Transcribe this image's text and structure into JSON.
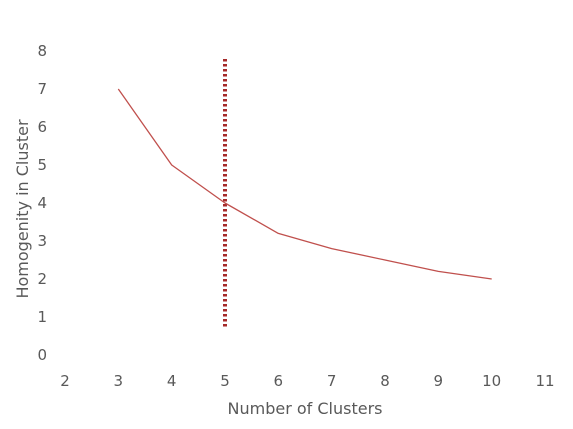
{
  "chart_data": {
    "type": "line",
    "xlabel": "Number of Clusters",
    "ylabel": "Homogenity in Cluster",
    "xlim": [
      2,
      11
    ],
    "ylim": [
      0,
      8
    ],
    "x_ticks": [
      "2",
      "3",
      "4",
      "5",
      "6",
      "7",
      "8",
      "9",
      "10",
      "11"
    ],
    "y_ticks": [
      "0",
      "1",
      "2",
      "3",
      "4",
      "5",
      "6",
      "7",
      "8"
    ],
    "grid": false,
    "series": [
      {
        "color": "#c0504d",
        "x": [
          3,
          4,
          5,
          6,
          7,
          8,
          9,
          10
        ],
        "y": [
          7.0,
          5.0,
          4.0,
          3.2,
          2.8,
          2.5,
          2.2,
          2.0
        ]
      }
    ],
    "reference_line": {
      "x": 5,
      "y_from": 0.75,
      "y_to": 7.8,
      "color": "#a52a2a",
      "style": "dotted"
    }
  }
}
